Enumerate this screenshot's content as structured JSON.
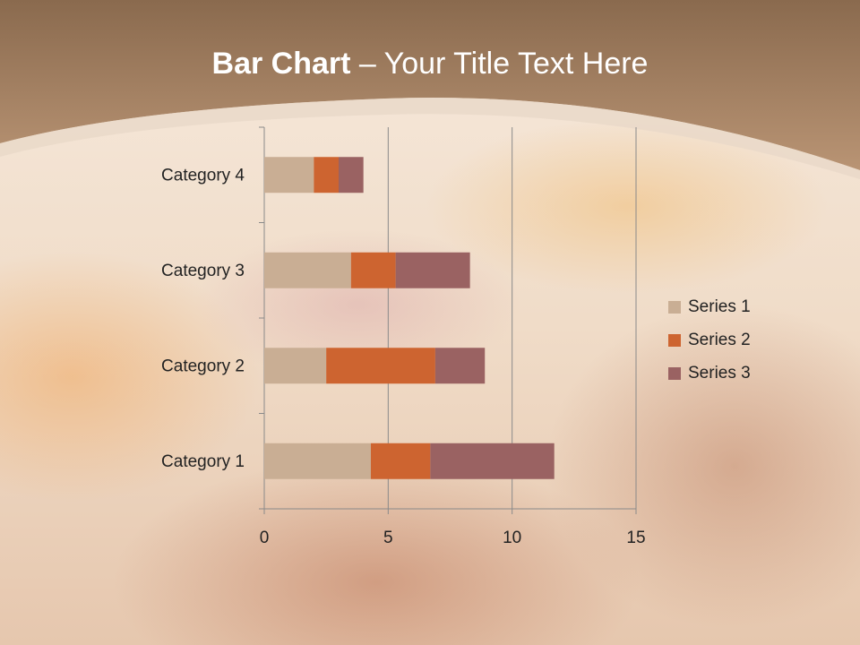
{
  "title": {
    "bold": "Bar Chart",
    "rest": " – Your Title Text Here"
  },
  "chart_data": {
    "type": "bar",
    "orientation": "horizontal",
    "stacked": true,
    "categories": [
      "Category 1",
      "Category 2",
      "Category 3",
      "Category 4"
    ],
    "series": [
      {
        "name": "Series 1",
        "values": [
          4.3,
          2.5,
          3.5,
          2.0
        ],
        "color": "#c9ae94"
      },
      {
        "name": "Series 2",
        "values": [
          2.4,
          4.4,
          1.8,
          1.0
        ],
        "color": "#cd6430"
      },
      {
        "name": "Series 3",
        "values": [
          5.0,
          2.0,
          3.0,
          1.0
        ],
        "color": "#9a6262"
      }
    ],
    "xlim": [
      0,
      15
    ],
    "xticks": [
      "0",
      "5",
      "10",
      "15"
    ],
    "grid": true,
    "legend": "right"
  }
}
